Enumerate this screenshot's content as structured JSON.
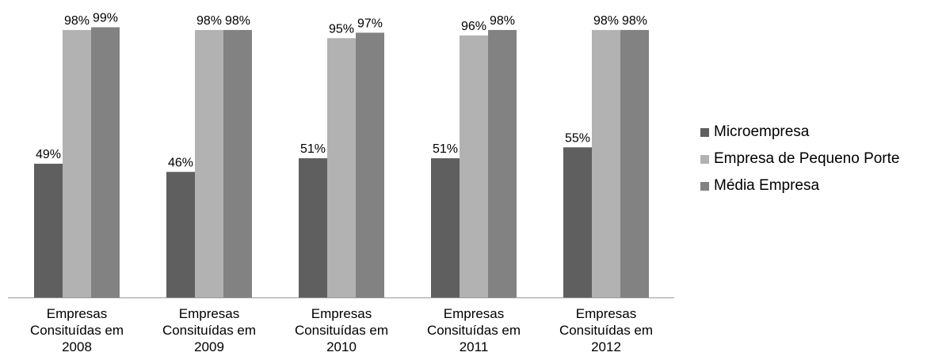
{
  "chart_data": {
    "type": "bar",
    "categories": [
      [
        "Empresas",
        "Consituídas em",
        "2008"
      ],
      [
        "Empresas",
        "Consituídas em",
        "2009"
      ],
      [
        "Empresas",
        "Consituídas em",
        "2010"
      ],
      [
        "Empresas",
        "Consituídas em",
        "2011"
      ],
      [
        "Empresas",
        "Consituídas em",
        "2012"
      ]
    ],
    "series": [
      {
        "name": "Microempresa",
        "color": "#5f5f5f",
        "values": [
          49,
          46,
          51,
          51,
          55
        ],
        "labels": [
          "49%",
          "46%",
          "51%",
          "51%",
          "55%"
        ]
      },
      {
        "name": "Empresa de Pequeno Porte",
        "color": "#b2b2b2",
        "values": [
          98,
          98,
          95,
          96,
          98
        ],
        "labels": [
          "98%",
          "98%",
          "95%",
          "96%",
          "98%"
        ]
      },
      {
        "name": "Média Empresa",
        "color": "#828282",
        "values": [
          99,
          98,
          97,
          98,
          98
        ],
        "labels": [
          "99%",
          "98%",
          "97%",
          "98%",
          "98%"
        ]
      }
    ],
    "ylim": [
      0,
      100
    ],
    "grid": false,
    "legend": "right"
  }
}
